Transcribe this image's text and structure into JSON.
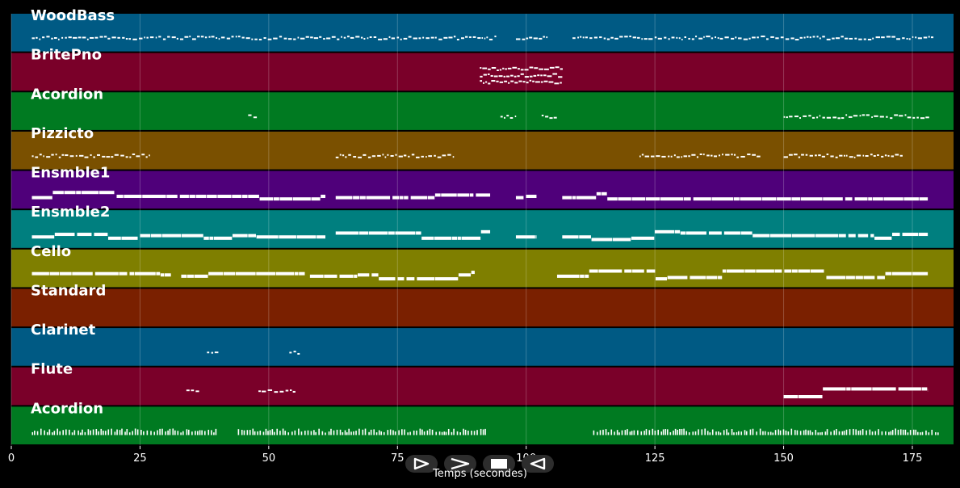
{
  "chart_data": {
    "type": "piano-roll",
    "xlabel": "Temps (secondes)",
    "xlim": [
      0,
      183
    ],
    "xticks": [
      0,
      25,
      50,
      75,
      100,
      125,
      150,
      175
    ],
    "grid": true,
    "tracks": [
      {
        "name": "WoodBass",
        "color": "#005a84",
        "density": 1.0,
        "segments": [
          [
            4,
            94,
            "light"
          ],
          [
            98,
            104,
            "light"
          ],
          [
            109,
            179,
            "light"
          ]
        ]
      },
      {
        "name": "BritePno",
        "color": "#7a0029",
        "density": 1.0,
        "segments": [
          [
            91,
            107,
            "chord"
          ]
        ]
      },
      {
        "name": "Acordion",
        "color": "#007a21",
        "density": 1.0,
        "segments": [
          [
            46,
            48,
            "light"
          ],
          [
            95,
            98,
            "light"
          ],
          [
            103,
            106,
            "light"
          ],
          [
            150,
            178,
            "light"
          ]
        ]
      },
      {
        "name": "Pizzicto",
        "color": "#7a5000",
        "density": 1.0,
        "segments": [
          [
            4,
            27,
            "light"
          ],
          [
            63,
            86,
            "light"
          ],
          [
            122,
            145,
            "light"
          ],
          [
            150,
            173,
            "light"
          ]
        ]
      },
      {
        "name": "Ensmble1",
        "color": "#4f007a",
        "density": 1.0,
        "segments": [
          [
            4,
            61,
            "bold"
          ],
          [
            63,
            93,
            "bold"
          ],
          [
            98,
            102,
            "bold"
          ],
          [
            107,
            178,
            "bold"
          ]
        ]
      },
      {
        "name": "Ensmble2",
        "color": "#007f7f",
        "density": 1.0,
        "segments": [
          [
            4,
            61,
            "bold"
          ],
          [
            63,
            93,
            "bold"
          ],
          [
            98,
            102,
            "bold"
          ],
          [
            107,
            178,
            "bold"
          ]
        ]
      },
      {
        "name": "Cello",
        "color": "#7f7f00",
        "density": 1.0,
        "segments": [
          [
            4,
            31,
            "bold"
          ],
          [
            33,
            57,
            "bold"
          ],
          [
            58,
            90,
            "bold"
          ],
          [
            106,
            178,
            "bold"
          ]
        ]
      },
      {
        "name": "Standard",
        "color": "#7a2000",
        "density": 1.0,
        "segments": []
      },
      {
        "name": "Clarinet",
        "color": "#005a84",
        "density": 1.0,
        "segments": [
          [
            38,
            40,
            "light"
          ],
          [
            54,
            56,
            "light"
          ]
        ]
      },
      {
        "name": "Flute",
        "color": "#7a0029",
        "density": 1.0,
        "segments": [
          [
            34,
            36,
            "light"
          ],
          [
            48,
            55,
            "light"
          ],
          [
            150,
            178,
            "bold"
          ]
        ]
      },
      {
        "name": "Acordion",
        "color": "#007a21",
        "density": 1.0,
        "segments": [
          [
            4,
            40,
            "tick"
          ],
          [
            44,
            92,
            "tick"
          ],
          [
            113,
            180,
            "tick"
          ]
        ]
      }
    ]
  },
  "controls": [
    {
      "name": "play-button",
      "icon": "play-outline-icon"
    },
    {
      "name": "forward-button",
      "icon": "chevron-right-icon"
    },
    {
      "name": "stop-button",
      "icon": "stop-icon"
    },
    {
      "name": "rewind-button",
      "icon": "play-back-outline-icon"
    }
  ]
}
